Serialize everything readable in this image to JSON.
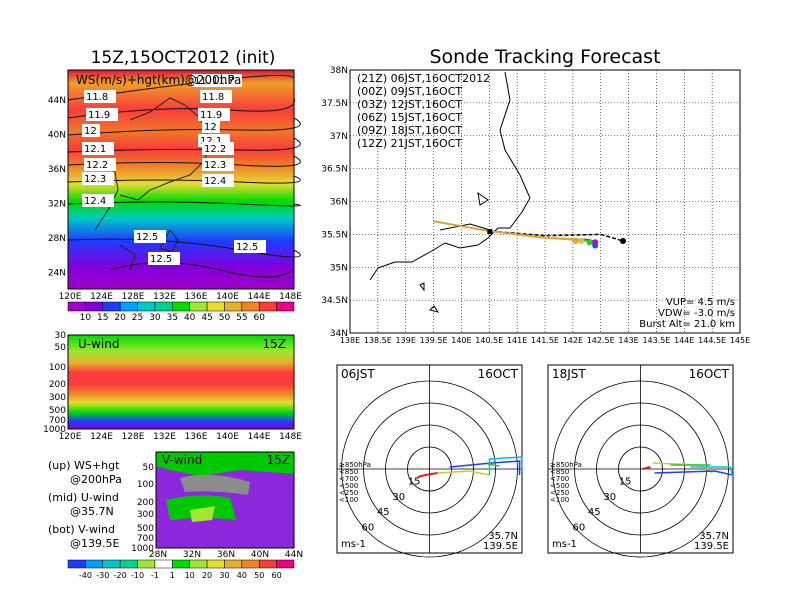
{
  "main_title": "Sonde Tracking Forecast",
  "left_title": "15Z,15OCT2012 (init)",
  "map_panel": {
    "label": "WS(m/s)+hgt(km)@200hPa",
    "lat_ticks": [
      "44N",
      "40N",
      "36N",
      "32N",
      "28N",
      "24N"
    ],
    "lon_ticks": [
      "120E",
      "124E",
      "128E",
      "132E",
      "136E",
      "140E",
      "144E",
      "148E"
    ],
    "contour_labels": [
      "11.6",
      "11.7",
      "11.8",
      "11.8",
      "11.9",
      "11.9",
      "12",
      "12",
      "12.1",
      "12.1",
      "12.2",
      "12.2",
      "12.3",
      "12.3",
      "12.4",
      "12.4",
      "12.5",
      "12.5",
      "12.5"
    ]
  },
  "ws_colorbar": {
    "ticks": [
      "10",
      "15",
      "20",
      "25",
      "30",
      "35",
      "40",
      "45",
      "50",
      "55",
      "60"
    ],
    "colors": [
      "#a000c8",
      "#8200dc",
      "#1e3cff",
      "#00a0ff",
      "#00c8c8",
      "#00d28c",
      "#00dc00",
      "#a0e632",
      "#e6dc32",
      "#e6af2d",
      "#f08228",
      "#fa3c3c",
      "#f00082"
    ]
  },
  "uwind_panel": {
    "label": "U-wind",
    "time": "15Z",
    "y_ticks": [
      "30",
      "50",
      "100",
      "200",
      "300",
      "500",
      "700",
      "1000"
    ],
    "x_ticks": [
      "120E",
      "124E",
      "128E",
      "132E",
      "136E",
      "140E",
      "144E",
      "148E"
    ]
  },
  "vwind_panel": {
    "label": "V-wind",
    "time": "15Z",
    "y_ticks": [
      "50",
      "100",
      "200",
      "300",
      "500",
      "700",
      "1000"
    ],
    "x_ticks": [
      "28N",
      "32N",
      "36N",
      "40N",
      "44N"
    ]
  },
  "side_notes": [
    {
      "line1": "(up) WS+hgt",
      "line2": "@200hPa"
    },
    {
      "line1": "(mid) U-wind",
      "line2": "@35.7N"
    },
    {
      "line1": "(bot) V-wind",
      "line2": "@139.5E"
    }
  ],
  "wind_colorbar": {
    "ticks": [
      "-40",
      "-30",
      "-20",
      "-10",
      "-1",
      "1",
      "10",
      "20",
      "30",
      "40",
      "50",
      "60"
    ],
    "colors": [
      "#1e3cff",
      "#00a0ff",
      "#00c8c8",
      "#00d28c",
      "#a0e632",
      "#ffffff",
      "#00dc00",
      "#a0e632",
      "#e6dc32",
      "#e6af2d",
      "#f08228",
      "#fa3c3c",
      "#f00082"
    ]
  },
  "track_panel": {
    "legend": [
      {
        "text": "(21Z) 06JST,16OCT2012",
        "color": "#000000"
      },
      {
        "text": "(00Z) 09JST,16OCT",
        "color": "#c800c8"
      },
      {
        "text": "(03Z) 12JST,16OCT",
        "color": "#3c3cff"
      },
      {
        "text": "(06Z) 15JST,16OCT",
        "color": "#28c828"
      },
      {
        "text": "(09Z) 18JST,16OCT",
        "color": "#c8c832"
      },
      {
        "text": "(12Z) 21JST,16OCT",
        "color": "#f0a028"
      }
    ],
    "lat_ticks": [
      "38N",
      "37.5N",
      "37N",
      "36.5N",
      "36N",
      "35.5N",
      "35N",
      "34.5N",
      "34N"
    ],
    "lon_ticks": [
      "138E",
      "138.5E",
      "139E",
      "139.5E",
      "140E",
      "140.5E",
      "141E",
      "141.5E",
      "142E",
      "142.5E",
      "143E",
      "143.5E",
      "144E",
      "144.5E",
      "145E"
    ],
    "params": [
      "VUP= 4.5 m/s",
      "VDW= -3.0 m/s",
      "Burst Alt= 21.0 km"
    ]
  },
  "chart_data": [
    {
      "type": "line",
      "title": "Sonde Tracking Forecast",
      "x_range": [
        138,
        145
      ],
      "y_range": [
        34,
        38
      ],
      "series": [
        {
          "name": "(21Z) 06JST,16OCT2012",
          "x": [
            139.5,
            140.5,
            141.5,
            142.5,
            142.9
          ],
          "y": [
            35.7,
            35.55,
            35.48,
            35.5,
            35.4
          ]
        },
        {
          "name": "(00Z) 09JST,16OCT",
          "x": [
            139.5,
            140.5,
            141.5,
            142.3,
            142.4
          ],
          "y": [
            35.7,
            35.55,
            35.45,
            35.42,
            35.38
          ]
        },
        {
          "name": "(03Z) 12JST,16OCT",
          "x": [
            139.5,
            140.5,
            141.5,
            142.3,
            142.4
          ],
          "y": [
            35.7,
            35.55,
            35.45,
            35.4,
            35.33
          ]
        },
        {
          "name": "(06Z) 15JST,16OCT",
          "x": [
            139.5,
            140.5,
            141.5,
            142.2,
            142.3
          ],
          "y": [
            35.7,
            35.55,
            35.45,
            35.42,
            35.38
          ]
        },
        {
          "name": "(09Z) 18JST,16OCT",
          "x": [
            139.5,
            140.5,
            141.5,
            142.1,
            142.15
          ],
          "y": [
            35.7,
            35.55,
            35.45,
            35.43,
            35.4
          ]
        },
        {
          "name": "(12Z) 21JST,16OCT",
          "x": [
            139.5,
            140.5,
            141.4,
            142.0,
            142.05
          ],
          "y": [
            35.7,
            35.55,
            35.45,
            35.42,
            35.4
          ]
        }
      ]
    }
  ],
  "hodo_left": {
    "time": "06JST",
    "date": "16OCT",
    "rings": [
      "15",
      "30",
      "45",
      "60"
    ],
    "levels": [
      "≥850hPa",
      "<850",
      "<700",
      "<500",
      "<250",
      "<100"
    ],
    "level_colors": [
      "#e61e1e",
      "#f08228",
      "#d2c832",
      "#28c828",
      "#00c8c8",
      "#1e3cff"
    ],
    "unit": "ms-1",
    "lat": "35.7N",
    "lon": "139.5E"
  },
  "hodo_right": {
    "time": "18JST",
    "date": "16OCT",
    "rings": [
      "15",
      "30",
      "45",
      "60"
    ],
    "levels": [
      "≥850hPa",
      "<850",
      "<700",
      "<500",
      "<250",
      "<100"
    ],
    "level_colors": [
      "#e61e1e",
      "#f08228",
      "#d2c832",
      "#28c828",
      "#00c8c8",
      "#1e3cff"
    ],
    "unit": "ms-1",
    "lat": "35.7N",
    "lon": "139.5E"
  }
}
